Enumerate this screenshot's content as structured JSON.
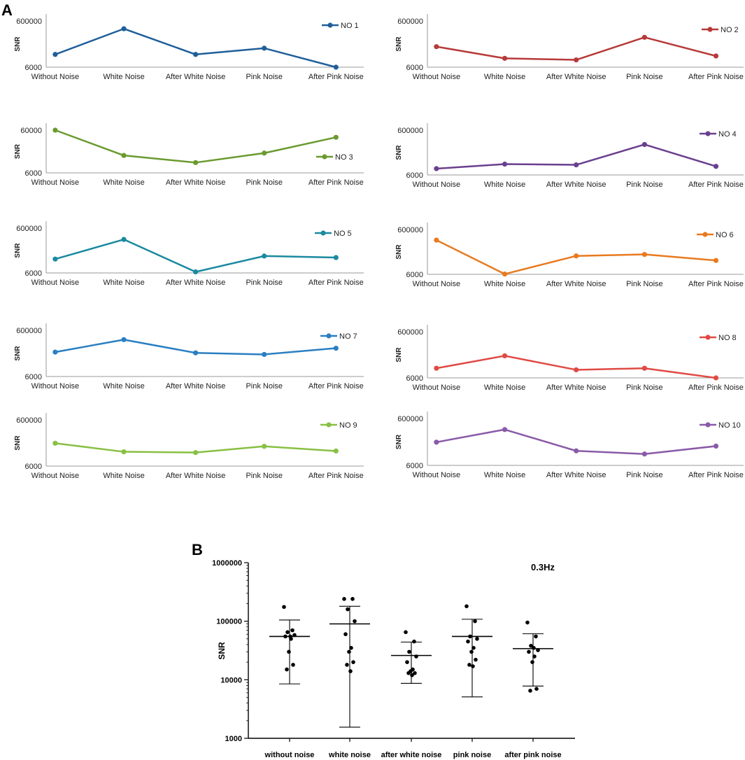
{
  "figure": {
    "panel_a_label": "A",
    "panel_b_label": "B"
  },
  "chart_data": [
    {
      "type": "line",
      "panel": "A",
      "series_name": "NO 1",
      "color": "#1f5f9a",
      "categories": [
        "Without Noise",
        "White Noise",
        "After White Noise",
        "Pink Noise",
        "After Pink Noise"
      ],
      "values": [
        170000,
        500000,
        170000,
        250000,
        6000
      ],
      "ylabel": "SNR",
      "yticks": [
        6000,
        600000
      ],
      "ylim": [
        6000,
        600000
      ]
    },
    {
      "type": "line",
      "panel": "A",
      "series_name": "NO 2",
      "color": "#b73a3a",
      "categories": [
        "Without Noise",
        "White Noise",
        "After White Noise",
        "Pink Noise",
        "After Pink Noise"
      ],
      "values": [
        270000,
        120000,
        100000,
        390000,
        150000
      ],
      "ylabel": "SNR",
      "yticks": [
        6000,
        600000
      ],
      "ylim": [
        6000,
        600000
      ]
    },
    {
      "type": "line",
      "panel": "A",
      "series_name": "NO 3",
      "color": "#6a9a2f",
      "categories": [
        "Without Noise",
        "White Noise",
        "After White Noise",
        "Pink Noise",
        "After Pink Noise"
      ],
      "values": [
        60000,
        28000,
        19000,
        31000,
        51000
      ],
      "ylabel": "SNR",
      "yticks": [
        6000,
        60000
      ],
      "ylim": [
        6000,
        60000
      ]
    },
    {
      "type": "line",
      "panel": "A",
      "series_name": "NO 4",
      "color": "#6a3f8f",
      "categories": [
        "Without Noise",
        "White Noise",
        "After White Noise",
        "Pink Noise",
        "After Pink Noise"
      ],
      "values": [
        90000,
        150000,
        140000,
        410000,
        120000
      ],
      "ylabel": "SNR",
      "yticks": [
        6000,
        600000
      ],
      "ylim": [
        6000,
        600000
      ]
    },
    {
      "type": "line",
      "panel": "A",
      "series_name": "NO 5",
      "color": "#1a8aa0",
      "categories": [
        "Without Noise",
        "White Noise",
        "After White Noise",
        "Pink Noise",
        "After Pink Noise"
      ],
      "values": [
        190000,
        450000,
        20000,
        230000,
        210000
      ],
      "ylabel": "SNR",
      "yticks": [
        6000,
        600000
      ],
      "ylim": [
        6000,
        600000
      ]
    },
    {
      "type": "line",
      "panel": "A",
      "series_name": "NO 6",
      "color": "#e87a1f",
      "categories": [
        "Without Noise",
        "White Noise",
        "After White Noise",
        "Pink Noise",
        "After Pink Noise"
      ],
      "values": [
        460000,
        10000,
        250000,
        270000,
        190000
      ],
      "ylabel": "SNR",
      "yticks": [
        6000,
        600000
      ],
      "ylim": [
        6000,
        600000
      ]
    },
    {
      "type": "line",
      "panel": "A",
      "series_name": "NO 7",
      "color": "#2a7fc2",
      "categories": [
        "Without Noise",
        "White Noise",
        "After White Noise",
        "Pink Noise",
        "After Pink Noise"
      ],
      "values": [
        320000,
        480000,
        310000,
        290000,
        370000
      ],
      "ylabel": "SNR",
      "yticks": [
        6000,
        600000
      ],
      "ylim": [
        6000,
        600000
      ]
    },
    {
      "type": "line",
      "panel": "A",
      "series_name": "NO 8",
      "color": "#e04a44",
      "categories": [
        "Without Noise",
        "White Noise",
        "After White Noise",
        "Pink Noise",
        "After Pink Noise"
      ],
      "values": [
        130000,
        290000,
        110000,
        130000,
        6000
      ],
      "ylabel": "SNR",
      "yticks": [
        6000,
        600000
      ],
      "ylim": [
        6000,
        600000
      ]
    },
    {
      "type": "line",
      "panel": "A",
      "series_name": "NO 9",
      "color": "#88c043",
      "categories": [
        "Without Noise",
        "White Noise",
        "After White Noise",
        "Pink Noise",
        "After Pink Noise"
      ],
      "values": [
        300000,
        190000,
        180000,
        260000,
        200000
      ],
      "ylabel": "SNR",
      "yticks": [
        6000,
        600000
      ],
      "ylim": [
        6000,
        600000
      ]
    },
    {
      "type": "line",
      "panel": "A",
      "series_name": "NO 10",
      "color": "#8a5aa8",
      "categories": [
        "Without Noise",
        "White Noise",
        "After White Noise",
        "Pink Noise",
        "After Pink Noise"
      ],
      "values": [
        300000,
        460000,
        190000,
        150000,
        250000
      ],
      "ylabel": "SNR",
      "yticks": [
        6000,
        600000
      ],
      "ylim": [
        6000,
        600000
      ]
    },
    {
      "type": "scatter",
      "panel": "B",
      "title": "0.3Hz",
      "ylabel": "SNR",
      "yscale": "log",
      "ylim": [
        1000,
        1000000
      ],
      "yticks": [
        1000,
        10000,
        100000,
        1000000
      ],
      "ytick_labels": [
        "1000",
        "10000",
        "100000",
        "1000000"
      ],
      "categories": [
        "without noise",
        "white noise",
        "after white noise",
        "pink noise",
        "after pink noise"
      ],
      "points": [
        [
          175000,
          70000,
          65000,
          58000,
          55000,
          50000,
          30000,
          18000,
          15000,
          55000
        ],
        [
          240000,
          240000,
          160000,
          100000,
          60000,
          35000,
          30000,
          20000,
          18000,
          14000
        ],
        [
          65000,
          45000,
          30000,
          25000,
          20000,
          15000,
          14000,
          13000,
          13000,
          12000
        ],
        [
          180000,
          100000,
          55000,
          50000,
          45000,
          35000,
          30000,
          22000,
          18000,
          17000
        ],
        [
          95000,
          55000,
          38000,
          32000,
          30000,
          25000,
          20000,
          7000,
          6500,
          35000
        ]
      ],
      "mean": [
        55000,
        90000,
        26000,
        55000,
        34000
      ],
      "err_upper": [
        105000,
        180000,
        44000,
        108000,
        61000
      ],
      "err_lower": [
        8500,
        1550,
        8700,
        5100,
        7800
      ]
    }
  ]
}
